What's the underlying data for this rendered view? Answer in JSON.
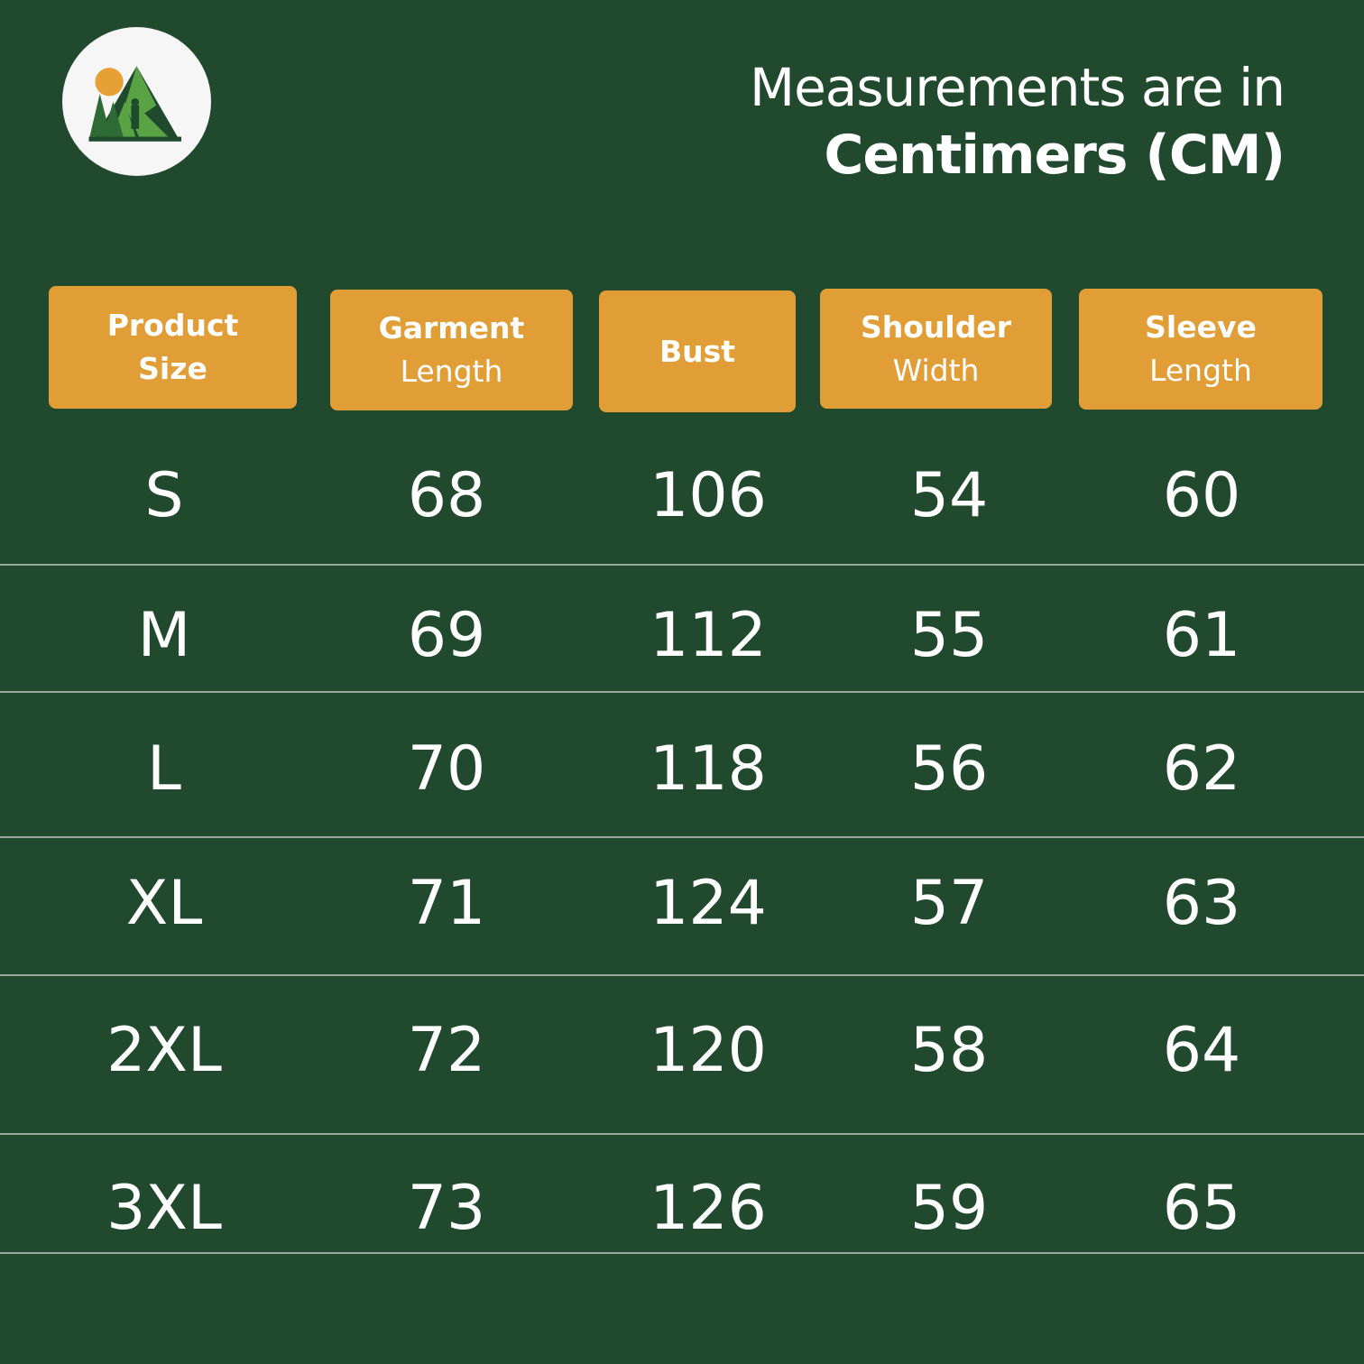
{
  "title": {
    "line1": "Measurements are in",
    "line2": "Centimers (CM)"
  },
  "colors": {
    "background": "#20492d",
    "header": "#e29e36",
    "sun": "#e7a035"
  },
  "logo": {
    "icon": "mountain-hiker-logo"
  },
  "headers": [
    {
      "bold": "Product",
      "regular": "Size"
    },
    {
      "bold": "Garment",
      "regular": "Length"
    },
    {
      "bold": "Bust",
      "regular": ""
    },
    {
      "bold": "Shoulder",
      "regular": "Width"
    },
    {
      "bold": "Sleeve",
      "regular": "Length"
    }
  ],
  "rows": [
    [
      "S",
      "68",
      "106",
      "54",
      "60"
    ],
    [
      "M",
      "69",
      "112",
      "55",
      "61"
    ],
    [
      "L",
      "70",
      "118",
      "56",
      "62"
    ],
    [
      "XL",
      "71",
      "124",
      "57",
      "63"
    ],
    [
      "2XL",
      "72",
      "120",
      "58",
      "64"
    ],
    [
      "3XL",
      "73",
      "126",
      "59",
      "65"
    ]
  ]
}
